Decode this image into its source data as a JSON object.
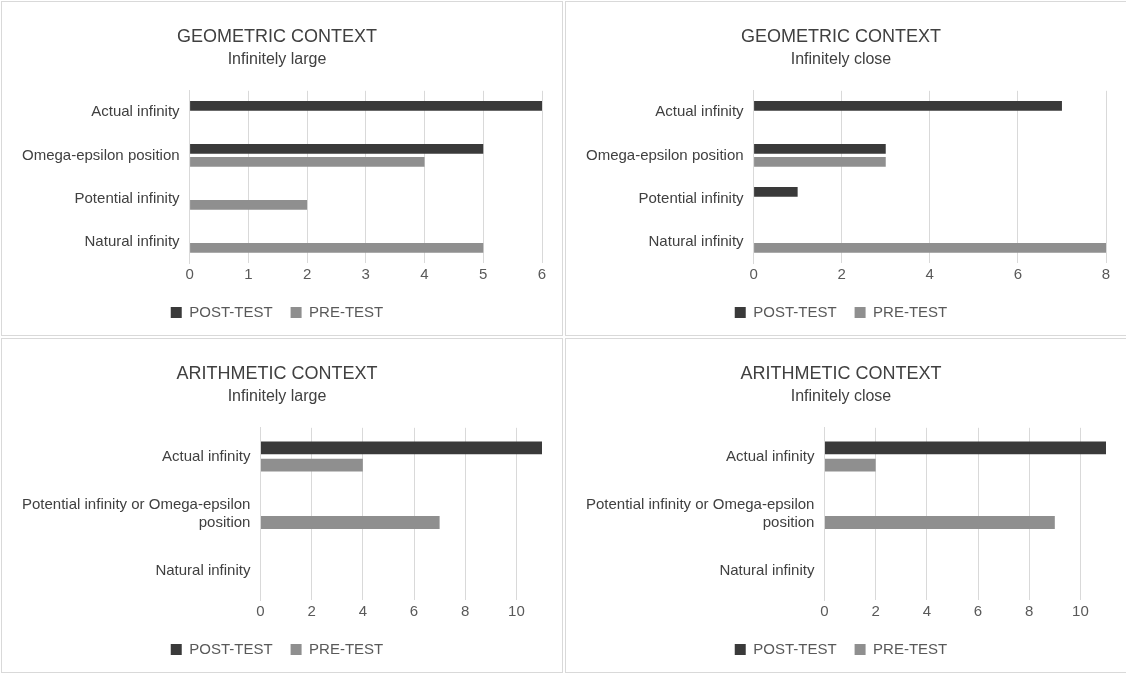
{
  "chart_data": [
    {
      "type": "bar",
      "orientation": "horizontal",
      "title": "GEOMETRIC CONTEXT",
      "subtitle": "Infinitely large",
      "categories": [
        "Actual infinity",
        "Omega-epsilon position",
        "Potential infinity",
        "Natural infinity"
      ],
      "series": [
        {
          "name": "POST-TEST",
          "color": "#3a3a3a",
          "values": [
            6,
            5,
            0,
            0
          ]
        },
        {
          "name": "PRE-TEST",
          "color": "#8f8f8f",
          "values": [
            0,
            4,
            2,
            5
          ]
        }
      ],
      "xlim": [
        0,
        6
      ],
      "xticks": [
        0,
        1,
        2,
        3,
        4,
        5,
        6
      ],
      "grid": "x",
      "legend": "bottom"
    },
    {
      "type": "bar",
      "orientation": "horizontal",
      "title": "GEOMETRIC CONTEXT",
      "subtitle": "Infinitely close",
      "categories": [
        "Actual infinity",
        "Omega-epsilon position",
        "Potential infinity",
        "Natural infinity"
      ],
      "series": [
        {
          "name": "POST-TEST",
          "color": "#3a3a3a",
          "values": [
            7,
            3,
            1,
            0
          ]
        },
        {
          "name": "PRE-TEST",
          "color": "#8f8f8f",
          "values": [
            0,
            3,
            0,
            8
          ]
        }
      ],
      "xlim": [
        0,
        8
      ],
      "xticks": [
        0,
        2,
        4,
        6,
        8
      ],
      "grid": "x",
      "legend": "bottom"
    },
    {
      "type": "bar",
      "orientation": "horizontal",
      "title": "ARITHMETIC CONTEXT",
      "subtitle": "Infinitely large",
      "categories": [
        "Actual infinity",
        "Potential infinity or Omega-epsilon position",
        "Natural infinity"
      ],
      "series": [
        {
          "name": "POST-TEST",
          "color": "#3a3a3a",
          "values": [
            11,
            0,
            0
          ]
        },
        {
          "name": "PRE-TEST",
          "color": "#8f8f8f",
          "values": [
            4,
            7,
            0
          ]
        }
      ],
      "xlim": [
        0,
        11
      ],
      "xticks": [
        0,
        2,
        4,
        6,
        8,
        10
      ],
      "grid": "x",
      "legend": "bottom"
    },
    {
      "type": "bar",
      "orientation": "horizontal",
      "title": "ARITHMETIC CONTEXT",
      "subtitle": "Infinitely close",
      "categories": [
        "Actual infinity",
        "Potential infinity or Omega-epsilon position",
        "Natural infinity"
      ],
      "series": [
        {
          "name": "POST-TEST",
          "color": "#3a3a3a",
          "values": [
            11,
            0,
            0
          ]
        },
        {
          "name": "PRE-TEST",
          "color": "#8f8f8f",
          "values": [
            2,
            9,
            0
          ]
        }
      ],
      "xlim": [
        0,
        11
      ],
      "xticks": [
        0,
        2,
        4,
        6,
        8,
        10
      ],
      "grid": "x",
      "legend": "bottom"
    }
  ]
}
